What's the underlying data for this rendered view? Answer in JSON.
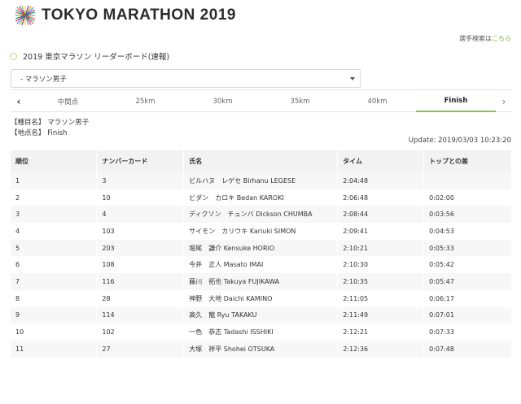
{
  "header": {
    "logo_text": "TOKYO MARATHON 2019"
  },
  "athlete_search": {
    "label": "選手検索は",
    "link": "こちら"
  },
  "section_title": "2019 東京マラソン リーダーボード(速報)",
  "category_select": {
    "value": "- マラソン男子"
  },
  "tabs": [
    {
      "label": "中間点"
    },
    {
      "label": "25km"
    },
    {
      "label": "30km"
    },
    {
      "label": "35km"
    },
    {
      "label": "40km"
    },
    {
      "label": "Finish",
      "active": true
    }
  ],
  "meta": {
    "event_line": "【種目名】 マラソン男子",
    "point_line": "【地点名】 Finish"
  },
  "update_time": "Update: 2019/03/03 10:23:20",
  "table": {
    "headers": {
      "rank": "順位",
      "bib": "ナンバーカード",
      "name": "氏名",
      "time": "タイム",
      "gap": "トップとの差"
    },
    "rows": [
      {
        "rank": "1",
        "bib": "3",
        "name": "ビルハヌ　レゲセ Birhanu LEGESE",
        "time": "2:04:48",
        "gap": ""
      },
      {
        "rank": "2",
        "bib": "10",
        "name": "ビダン　カロキ Bedan KAROKI",
        "time": "2:06:48",
        "gap": "0:02:00"
      },
      {
        "rank": "3",
        "bib": "4",
        "name": "ディクソン　チュンバ Dickson CHUMBA",
        "time": "2:08:44",
        "gap": "0:03:56"
      },
      {
        "rank": "4",
        "bib": "103",
        "name": "サイモン　カリウキ Kariuki SIMON",
        "time": "2:09:41",
        "gap": "0:04:53"
      },
      {
        "rank": "5",
        "bib": "203",
        "name": "堀尾　謙介 Kensuke HORIO",
        "time": "2:10:21",
        "gap": "0:05:33"
      },
      {
        "rank": "6",
        "bib": "108",
        "name": "今井　正人 Masato IMAI",
        "time": "2:10:30",
        "gap": "0:05:42"
      },
      {
        "rank": "7",
        "bib": "116",
        "name": "藤川　拓也 Takuya FUJIKAWA",
        "time": "2:10:35",
        "gap": "0:05:47"
      },
      {
        "rank": "8",
        "bib": "28",
        "name": "神野　大地 Daichi KAMINO",
        "time": "2:11:05",
        "gap": "0:06:17"
      },
      {
        "rank": "9",
        "bib": "114",
        "name": "高久　龍 Ryu TAKAKU",
        "time": "2:11:49",
        "gap": "0:07:01"
      },
      {
        "rank": "10",
        "bib": "102",
        "name": "一色　恭志 Tadashi ISSHIKI",
        "time": "2:12:21",
        "gap": "0:07:33"
      },
      {
        "rank": "11",
        "bib": "27",
        "name": "大塚　祥平 Shohei OTSUKA",
        "time": "2:12:36",
        "gap": "0:07:48"
      }
    ]
  },
  "colors": {
    "accent": "#8bc34a",
    "link": "#7cb342",
    "header_bg": "#f2f2f2",
    "stripe": "#f7f7f7"
  }
}
